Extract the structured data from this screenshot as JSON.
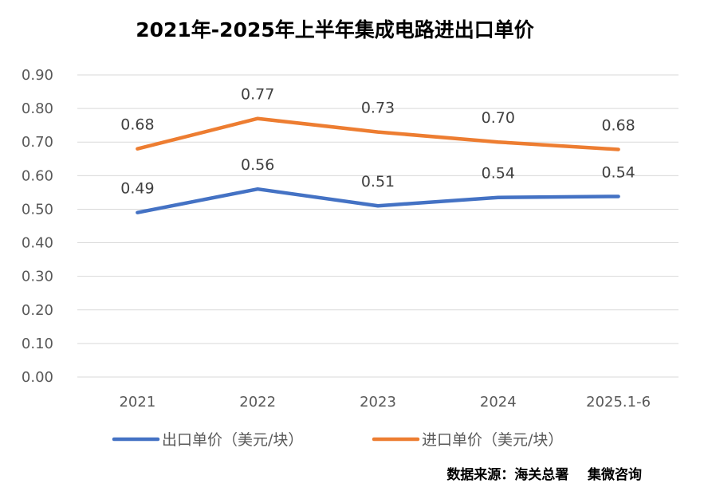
{
  "chart_data": {
    "type": "line",
    "title": "2021年-2025年上半年集成电路进出口单价",
    "categories": [
      "2021",
      "2022",
      "2023",
      "2024",
      "2025.1-6"
    ],
    "series": [
      {
        "name": "出口单价（美元/块）",
        "values": [
          0.49,
          0.56,
          0.51,
          0.535,
          0.538
        ],
        "labels": [
          "0.49",
          "0.56",
          "0.51",
          "0.54",
          "0.54"
        ],
        "color": "#4472C4"
      },
      {
        "name": "进口单价（美元/块）",
        "values": [
          0.68,
          0.77,
          0.73,
          0.7,
          0.678
        ],
        "labels": [
          "0.68",
          "0.77",
          "0.73",
          "0.70",
          "0.68"
        ],
        "color": "#ED7D31"
      }
    ],
    "ylim": [
      0,
      0.9
    ],
    "yticks": [
      "0.00",
      "0.10",
      "0.20",
      "0.30",
      "0.40",
      "0.50",
      "0.60",
      "0.70",
      "0.80",
      "0.90"
    ],
    "grid": true,
    "legend_position": "bottom"
  },
  "source": "数据来源：海关总署    集微咨询"
}
